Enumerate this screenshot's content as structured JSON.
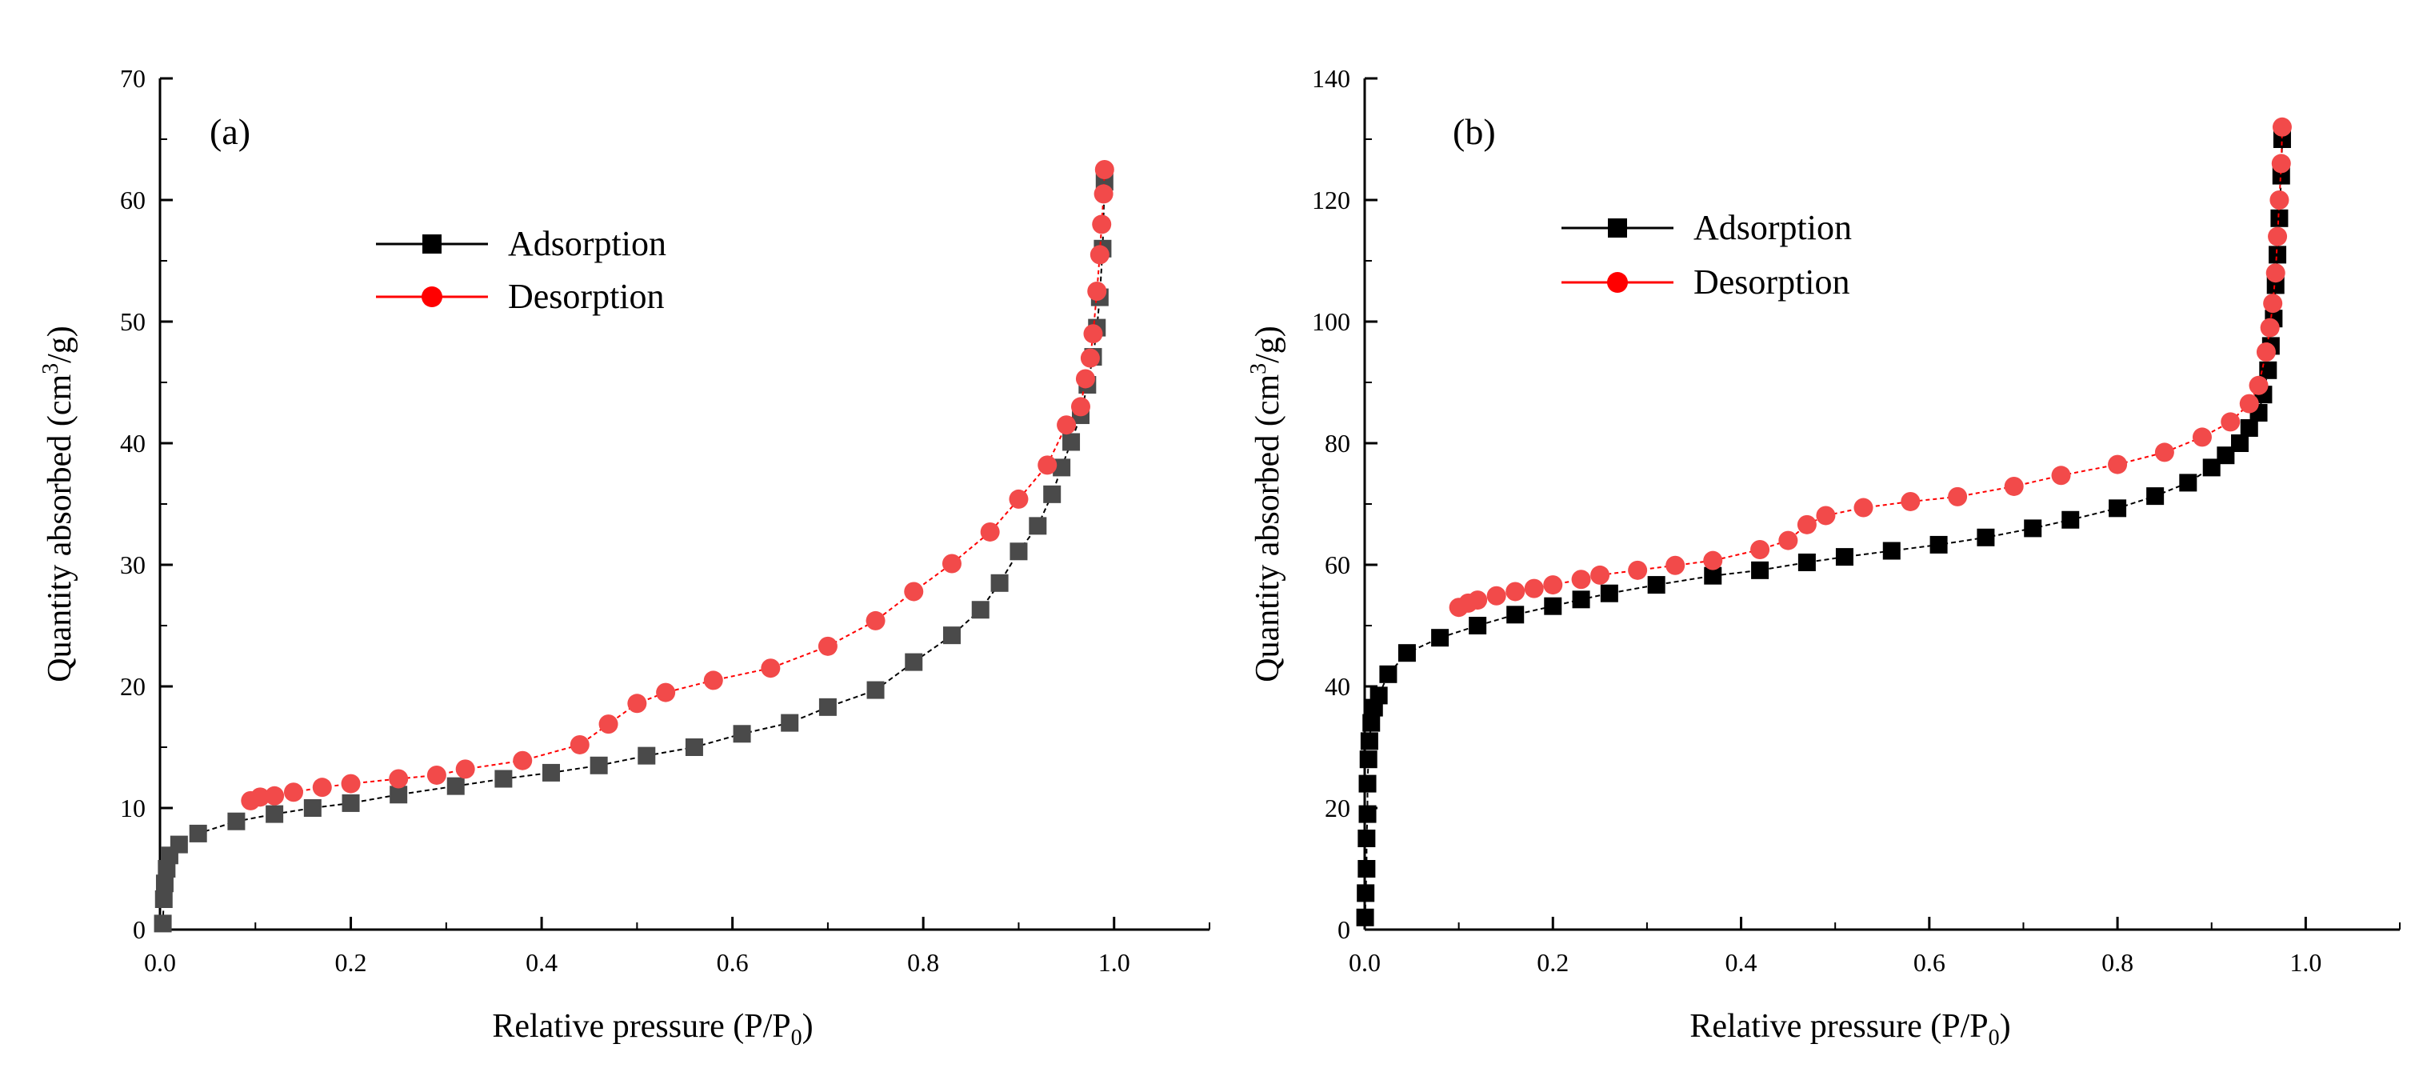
{
  "chart_data": [
    {
      "type": "line",
      "panel_label": "(a)",
      "title": "",
      "xlabel": "Relative pressure (P/P0)",
      "xlabel_main": "Relative pressure (P/P",
      "xlabel_sub": "0",
      "xlabel_end": ")",
      "ylabel": "Quantity absorbed (cm3/g)",
      "ylabel_main": "Quantity absorbed (cm",
      "ylabel_sup": "3",
      "ylabel_end": "/g)",
      "xlim": [
        0,
        1.1
      ],
      "ylim": [
        0,
        70
      ],
      "xticks": [
        "0.0",
        "0.2",
        "0.4",
        "0.6",
        "0.8",
        "1.0"
      ],
      "yticks": [
        "0",
        "10",
        "20",
        "30",
        "40",
        "50",
        "60",
        "70"
      ],
      "legend_position": "upper-center",
      "series": [
        {
          "name": "Adsorption",
          "color": "#000000",
          "marker_color": "#4a4a4a",
          "marker": "square",
          "x": [
            0.003,
            0.004,
            0.005,
            0.007,
            0.01,
            0.02,
            0.04,
            0.08,
            0.12,
            0.16,
            0.2,
            0.25,
            0.31,
            0.36,
            0.41,
            0.46,
            0.51,
            0.56,
            0.61,
            0.66,
            0.7,
            0.75,
            0.79,
            0.83,
            0.86,
            0.88,
            0.9,
            0.92,
            0.935,
            0.945,
            0.955,
            0.965,
            0.972,
            0.978,
            0.982,
            0.985,
            0.988,
            0.99
          ],
          "y": [
            0.5,
            2.5,
            3.8,
            5.0,
            6.1,
            7.0,
            7.9,
            8.9,
            9.5,
            10.0,
            10.4,
            11.1,
            11.8,
            12.4,
            12.9,
            13.5,
            14.3,
            15.0,
            16.1,
            17.0,
            18.3,
            19.7,
            22.0,
            24.2,
            26.3,
            28.5,
            31.1,
            33.2,
            35.8,
            38.0,
            40.1,
            42.3,
            44.8,
            47.1,
            49.5,
            52.0,
            56.0,
            61.5
          ]
        },
        {
          "name": "Desorption",
          "color": "#ff0000",
          "marker_color": "#f24a4a",
          "marker": "circle",
          "x": [
            0.99,
            0.989,
            0.987,
            0.985,
            0.982,
            0.978,
            0.975,
            0.97,
            0.965,
            0.95,
            0.93,
            0.9,
            0.87,
            0.83,
            0.79,
            0.75,
            0.7,
            0.64,
            0.58,
            0.53,
            0.5,
            0.47,
            0.44,
            0.38,
            0.32,
            0.29,
            0.25,
            0.2,
            0.17,
            0.14,
            0.12,
            0.105,
            0.095
          ],
          "y": [
            62.5,
            60.5,
            58.0,
            55.5,
            52.5,
            49.0,
            47.0,
            45.3,
            43.0,
            41.5,
            38.2,
            35.4,
            32.7,
            30.1,
            27.8,
            25.4,
            23.3,
            21.5,
            20.5,
            19.5,
            18.6,
            16.9,
            15.2,
            13.9,
            13.2,
            12.7,
            12.4,
            12.0,
            11.7,
            11.3,
            11.0,
            10.9,
            10.6
          ]
        }
      ]
    },
    {
      "type": "line",
      "panel_label": "(b)",
      "title": "",
      "xlabel": "Relative pressure (P/P0)",
      "xlabel_main": "Relative pressure (P/P",
      "xlabel_sub": "0",
      "xlabel_end": ")",
      "ylabel": "Quantity absorbed (cm3/g)",
      "ylabel_main": "Quantity absorbed (cm",
      "ylabel_sup": "3",
      "ylabel_end": "/g)",
      "xlim": [
        0,
        1.1
      ],
      "ylim": [
        0,
        140
      ],
      "xticks": [
        "0.0",
        "0.2",
        "0.4",
        "0.6",
        "0.8",
        "1.0"
      ],
      "yticks": [
        "0",
        "20",
        "40",
        "60",
        "80",
        "100",
        "120",
        "140"
      ],
      "legend_position": "upper-left",
      "series": [
        {
          "name": "Adsorption",
          "color": "#000000",
          "marker_color": "#000000",
          "marker": "square",
          "x": [
            0.0005,
            0.001,
            0.002,
            0.002,
            0.003,
            0.003,
            0.004,
            0.005,
            0.007,
            0.01,
            0.015,
            0.025,
            0.045,
            0.08,
            0.12,
            0.16,
            0.2,
            0.23,
            0.26,
            0.31,
            0.37,
            0.42,
            0.47,
            0.51,
            0.56,
            0.61,
            0.66,
            0.71,
            0.75,
            0.8,
            0.84,
            0.875,
            0.9,
            0.915,
            0.93,
            0.94,
            0.95,
            0.955,
            0.96,
            0.963,
            0.966,
            0.968,
            0.97,
            0.972,
            0.974,
            0.975
          ],
          "y": [
            2,
            6,
            10,
            15,
            19,
            24,
            28,
            31,
            34,
            36.5,
            38.5,
            42,
            45.5,
            48,
            50,
            51.8,
            53.2,
            54.3,
            55.3,
            56.7,
            58.2,
            59.1,
            60.4,
            61.3,
            62.3,
            63.3,
            64.5,
            66.0,
            67.4,
            69.3,
            71.3,
            73.5,
            76.0,
            78.0,
            80.0,
            82.5,
            85.0,
            88.0,
            92.0,
            96.0,
            100.5,
            106.0,
            111.0,
            117.0,
            124.0,
            130.0
          ]
        },
        {
          "name": "Desorption",
          "color": "#ff0000",
          "marker_color": "#f24a4a",
          "marker": "circle",
          "x": [
            0.975,
            0.974,
            0.972,
            0.97,
            0.968,
            0.965,
            0.962,
            0.958,
            0.95,
            0.94,
            0.92,
            0.89,
            0.85,
            0.8,
            0.74,
            0.69,
            0.63,
            0.58,
            0.53,
            0.49,
            0.47,
            0.45,
            0.42,
            0.37,
            0.33,
            0.29,
            0.25,
            0.23,
            0.2,
            0.18,
            0.16,
            0.14,
            0.12,
            0.11,
            0.1
          ],
          "y": [
            132.0,
            126.0,
            120.0,
            114.0,
            108.0,
            103.0,
            99.0,
            95.0,
            89.5,
            86.5,
            83.5,
            81.0,
            78.5,
            76.5,
            74.7,
            72.9,
            71.2,
            70.4,
            69.4,
            68.1,
            66.6,
            64.0,
            62.5,
            60.7,
            59.9,
            59.1,
            58.3,
            57.6,
            56.7,
            56.1,
            55.6,
            54.9,
            54.2,
            53.7,
            53.0
          ]
        }
      ]
    }
  ]
}
